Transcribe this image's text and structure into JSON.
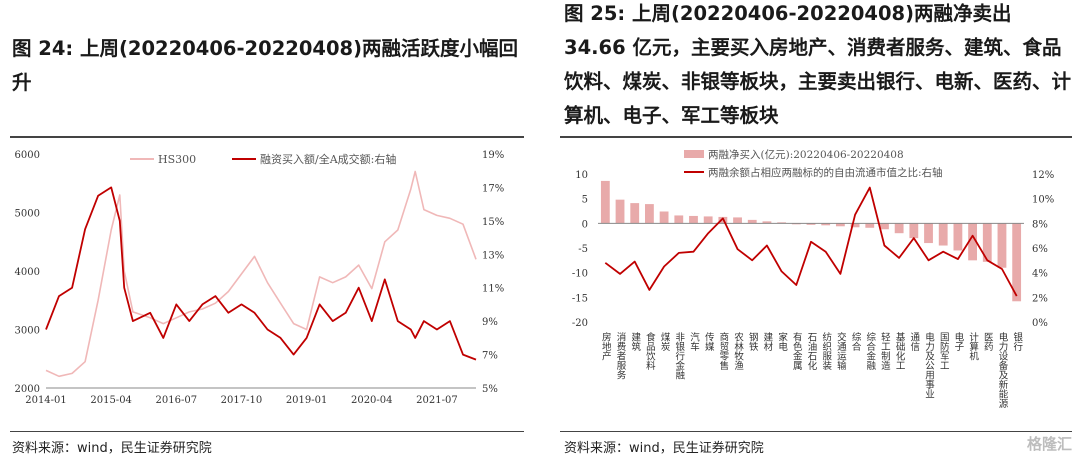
{
  "left": {
    "title": "图 24: 上周(20220406-20220408)两融活跃度小幅回升",
    "source": "资料来源：wind，民生证券研究院",
    "chart_data": {
      "type": "line",
      "series": [
        {
          "name": "HS300",
          "axis": "left",
          "color": "#f0b8b8",
          "x": [
            "2014-01",
            "2014-04",
            "2014-07",
            "2014-10",
            "2015-01",
            "2015-04",
            "2015-06",
            "2015-07",
            "2015-09",
            "2016-01",
            "2016-04",
            "2016-07",
            "2016-10",
            "2017-01",
            "2017-04",
            "2017-07",
            "2017-10",
            "2018-01",
            "2018-04",
            "2018-07",
            "2018-10",
            "2019-01",
            "2019-04",
            "2019-07",
            "2019-10",
            "2020-01",
            "2020-04",
            "2020-07",
            "2020-10",
            "2021-01",
            "2021-02",
            "2021-04",
            "2021-07",
            "2021-10",
            "2022-01",
            "2022-04"
          ],
          "values": [
            2300,
            2200,
            2250,
            2450,
            3500,
            4700,
            5300,
            4000,
            3300,
            3200,
            3100,
            3200,
            3300,
            3350,
            3450,
            3650,
            3950,
            4250,
            3800,
            3450,
            3100,
            3000,
            3900,
            3800,
            3900,
            4100,
            3700,
            4500,
            4700,
            5400,
            5700,
            5050,
            4950,
            4900,
            4800,
            4200
          ]
        },
        {
          "name": "融资买入额/全A成交额:右轴",
          "axis": "right",
          "color": "#c00000",
          "x": [
            "2014-01",
            "2014-04",
            "2014-07",
            "2014-10",
            "2015-01",
            "2015-04",
            "2015-06",
            "2015-07",
            "2015-09",
            "2016-01",
            "2016-04",
            "2016-07",
            "2016-10",
            "2017-01",
            "2017-04",
            "2017-07",
            "2017-10",
            "2018-01",
            "2018-04",
            "2018-07",
            "2018-10",
            "2019-01",
            "2019-04",
            "2019-07",
            "2019-10",
            "2020-01",
            "2020-04",
            "2020-07",
            "2020-10",
            "2021-01",
            "2021-02",
            "2021-04",
            "2021-07",
            "2021-10",
            "2022-01",
            "2022-04"
          ],
          "values": [
            8.5,
            10.5,
            11.0,
            14.5,
            16.5,
            17.0,
            15.0,
            11.0,
            9.0,
            9.5,
            8.0,
            10.0,
            9.0,
            10.0,
            10.5,
            9.5,
            10.0,
            9.5,
            8.5,
            8.0,
            7.0,
            8.0,
            10.0,
            9.0,
            9.5,
            11.0,
            9.0,
            11.5,
            9.0,
            8.5,
            8.0,
            9.0,
            8.5,
            9.0,
            7.0,
            6.7
          ]
        }
      ],
      "yleft": {
        "min": 2000,
        "max": 6000,
        "ticks": [
          "2000",
          "3000",
          "4000",
          "5000",
          "6000"
        ]
      },
      "yright": {
        "min": 5,
        "max": 19,
        "ticks": [
          "5%",
          "7%",
          "9%",
          "11%",
          "13%",
          "15%",
          "17%",
          "19%"
        ]
      },
      "xticks": [
        "2014-01",
        "2015-04",
        "2016-07",
        "2017-10",
        "2019-01",
        "2020-04",
        "2021-07"
      ],
      "legend": [
        "HS300",
        "融资买入额/全A成交额:右轴"
      ]
    }
  },
  "right": {
    "title": "图 25: 上周(20220406-20220408)两融净卖出 34.66 亿元，主要买入房地产、消费者服务、建筑、食品饮料、煤炭、非银等板块，主要卖出银行、电新、医药、计算机、电子、军工等板块",
    "source": "资料来源：wind，民生证券研究院",
    "watermark": "格隆汇",
    "chart_data": {
      "type": "bar",
      "categories": [
        "房地产",
        "消费者服务",
        "建筑",
        "食品饮料",
        "煤炭",
        "非银行金融",
        "汽车",
        "传媒",
        "商贸零售",
        "农林牧渔",
        "钢铁",
        "建材",
        "家电",
        "有色金属",
        "石油石化",
        "纺织服装",
        "交通运输",
        "综合",
        "综合金融",
        "轻工制造",
        "基础化工",
        "通信",
        "电力及公用事业",
        "国防军工",
        "电子",
        "计算机",
        "医药",
        "电力设备及新能源",
        "银行"
      ],
      "series": [
        {
          "name": "两融净买入(亿元):20220406-20220408",
          "axis": "left",
          "color": "#e8aaaa",
          "values": [
            8.6,
            4.8,
            4.1,
            3.9,
            2.4,
            1.6,
            1.5,
            1.4,
            1.3,
            1.2,
            0.7,
            0.4,
            0.2,
            -0.2,
            -0.3,
            -0.4,
            -0.6,
            -0.8,
            -0.9,
            -1.2,
            -2.0,
            -3.0,
            -4.0,
            -4.5,
            -5.5,
            -7.5,
            -7.8,
            -9.0,
            -15.8
          ]
        },
        {
          "name": "两融余额占相应两融标的的自由流通市值之比:右轴",
          "axis": "right",
          "color": "#c00000",
          "values": [
            4.8,
            3.9,
            4.9,
            2.6,
            4.5,
            5.6,
            5.7,
            7.2,
            8.4,
            5.9,
            5.0,
            6.2,
            4.1,
            3.0,
            6.5,
            5.7,
            3.9,
            8.7,
            10.9,
            6.2,
            5.2,
            6.8,
            5.0,
            5.7,
            5.1,
            7.0,
            5.0,
            4.3,
            2.1
          ]
        }
      ],
      "yleft": {
        "min": -20,
        "max": 10,
        "ticks": [
          "-20",
          "-15",
          "-10",
          "-5",
          "0",
          "5",
          "10"
        ]
      },
      "yright": {
        "min": 0,
        "max": 12,
        "ticks": [
          "0%",
          "2%",
          "4%",
          "6%",
          "8%",
          "10%",
          "12%"
        ]
      },
      "legend": [
        "两融净买入(亿元):20220406-20220408",
        "两融余额占相应两融标的的自由流通市值之比:右轴"
      ]
    }
  }
}
